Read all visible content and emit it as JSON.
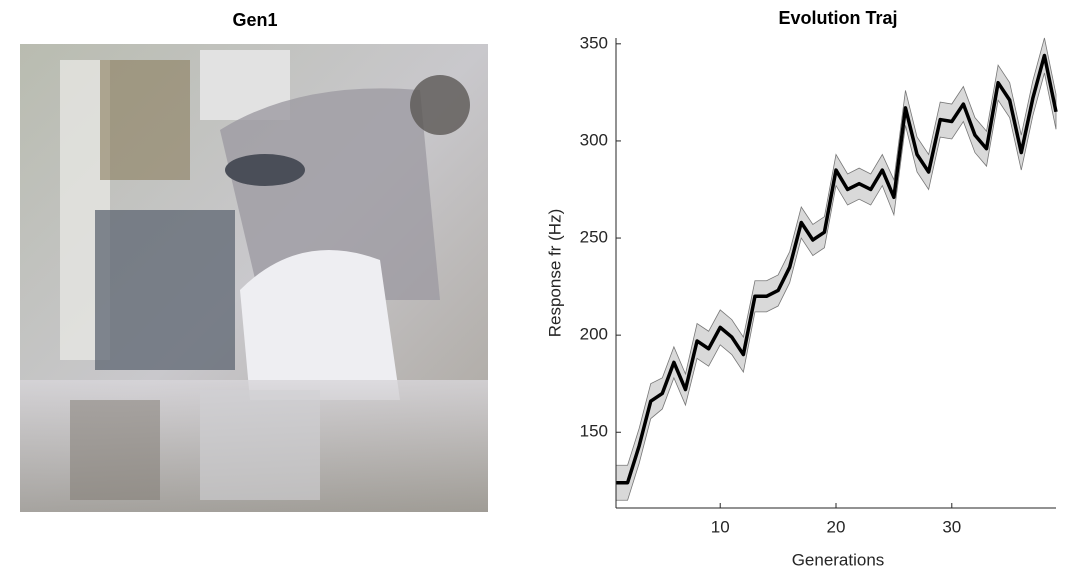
{
  "image_panel": {
    "title": "Gen1"
  },
  "chart_data": {
    "type": "line",
    "title": "Evolution Traj",
    "x_label": "Generations",
    "y_label": "Response fr (Hz)",
    "x": [
      1,
      2,
      3,
      4,
      5,
      6,
      7,
      8,
      9,
      10,
      11,
      12,
      13,
      14,
      15,
      16,
      17,
      18,
      19,
      20,
      21,
      22,
      23,
      24,
      25,
      26,
      27,
      28,
      29,
      30,
      31,
      32,
      33,
      34,
      35,
      36,
      37,
      38,
      39
    ],
    "values": [
      124,
      124,
      143,
      166,
      170,
      186,
      172,
      197,
      193,
      204,
      199,
      190,
      220,
      220,
      223,
      235,
      258,
      249,
      253,
      285,
      275,
      278,
      275,
      285,
      271,
      317,
      293,
      284,
      311,
      310,
      319,
      303,
      296,
      330,
      321,
      294,
      322,
      344,
      315
    ],
    "errors": [
      9,
      9,
      9,
      9,
      8,
      8,
      8,
      9,
      9,
      9,
      9,
      9,
      8,
      8,
      8,
      8,
      8,
      8,
      8,
      8,
      8,
      8,
      8,
      8,
      9,
      9,
      9,
      9,
      9,
      9,
      9,
      9,
      9,
      9,
      9,
      9,
      9,
      9,
      9
    ],
    "color": "#000000",
    "band_color": "#d9d9d9",
    "xlim": [
      1,
      39
    ],
    "ylim": [
      111,
      353
    ],
    "xticks": [
      10,
      20,
      30
    ],
    "yticks": [
      150,
      200,
      250,
      300,
      350
    ],
    "grid": false
  }
}
